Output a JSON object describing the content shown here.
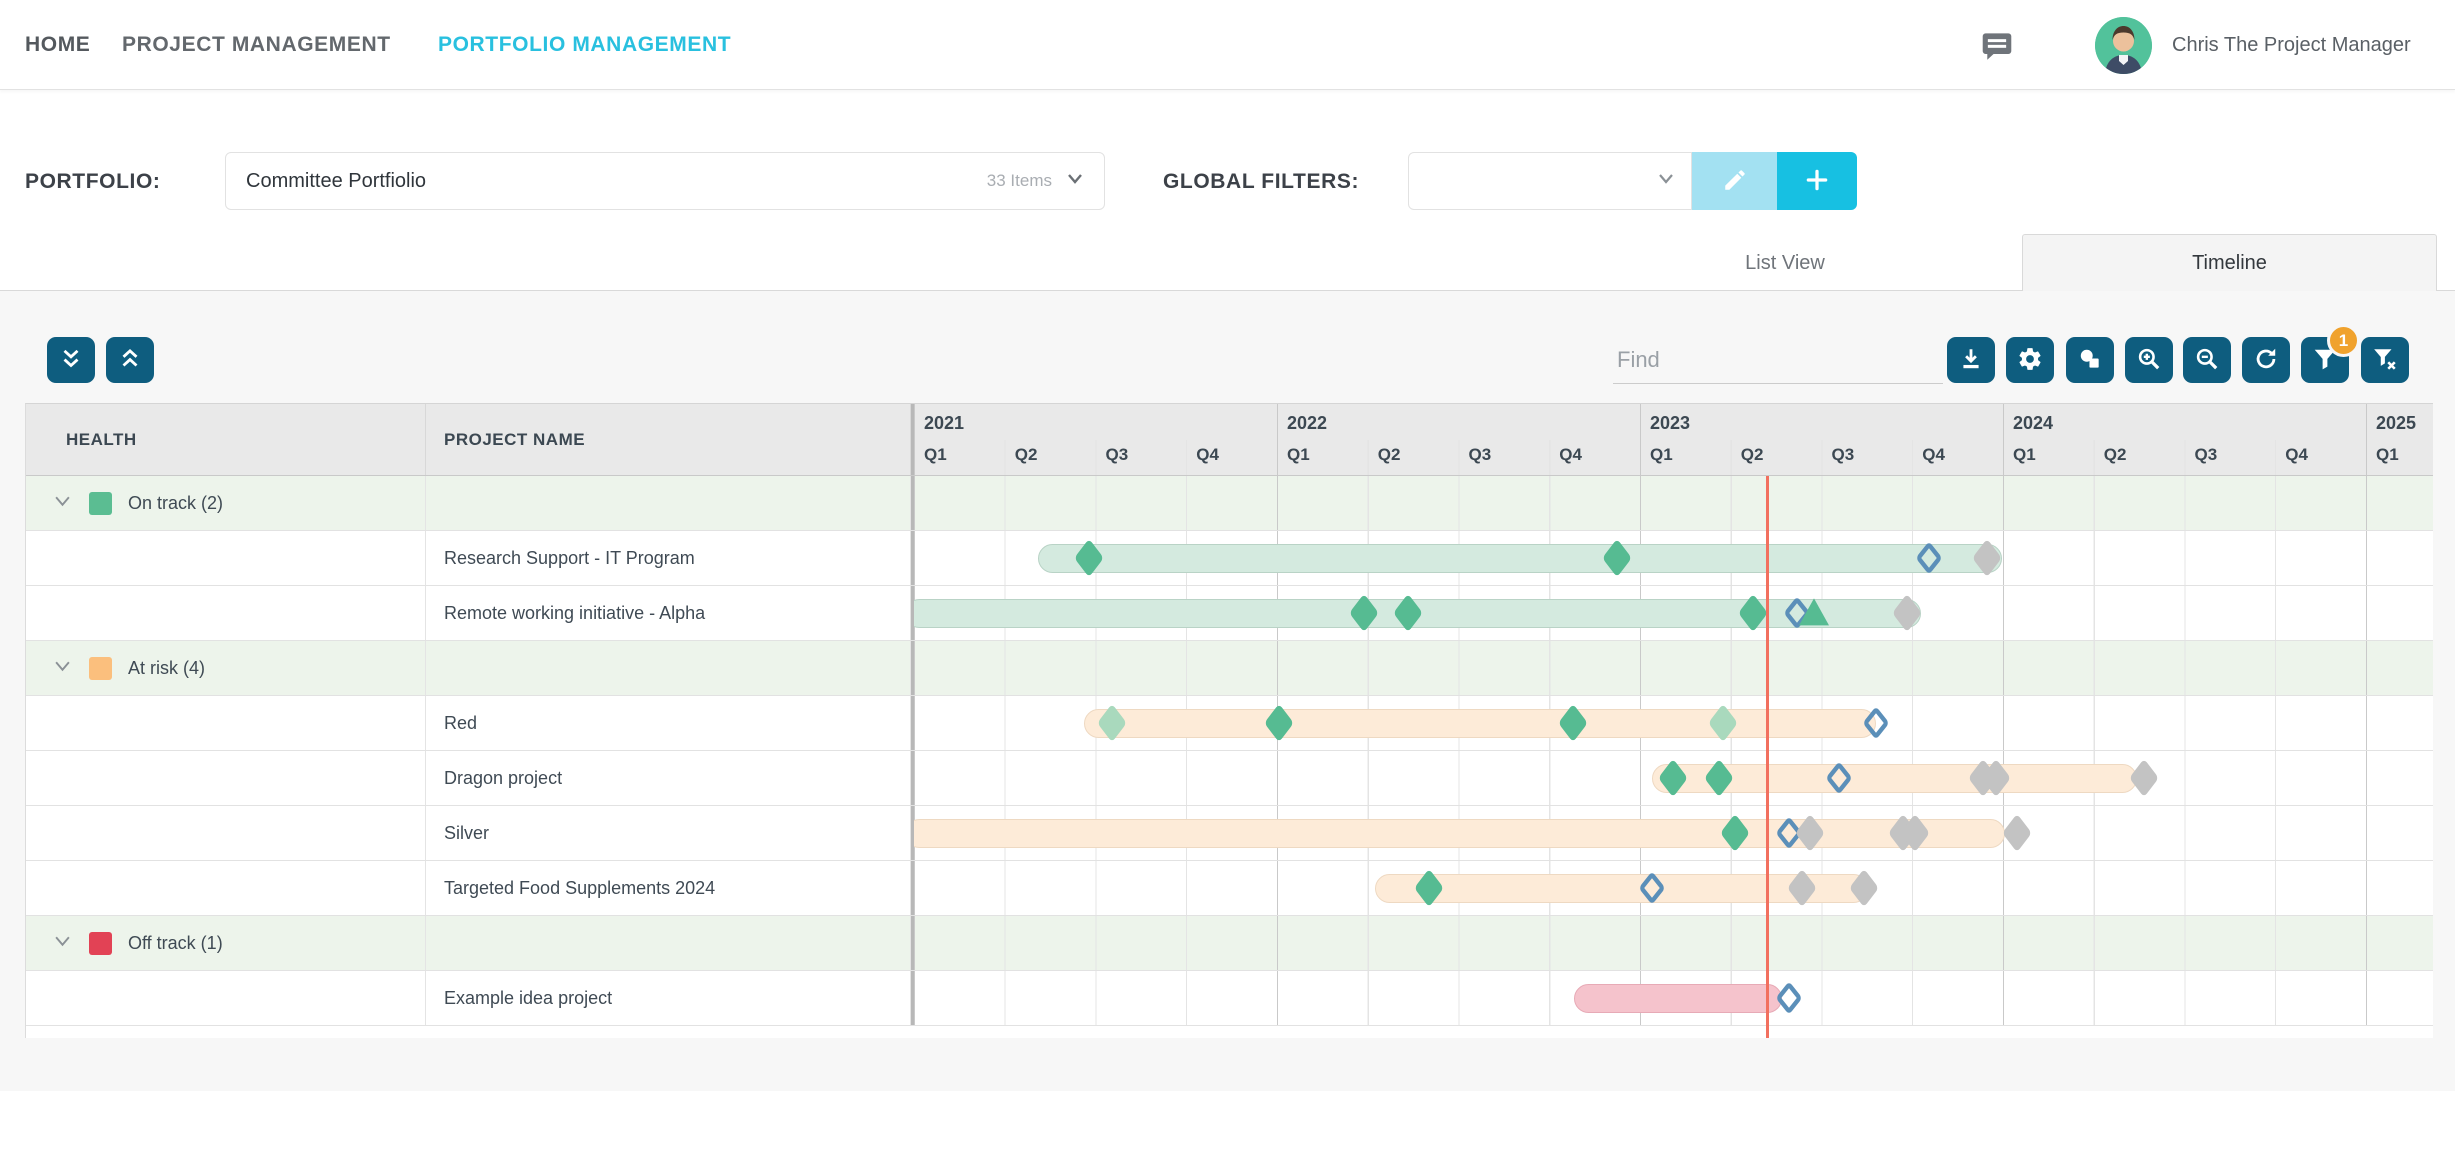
{
  "nav": {
    "home": "HOME",
    "project_management": "PROJECT MANAGEMENT",
    "portfolio_management": "PORTFOLIO MANAGEMENT",
    "user_name": "Chris The Project Manager"
  },
  "controls": {
    "portfolio_label": "PORTFOLIO:",
    "portfolio_value": "Committee Portfiolio",
    "portfolio_items": "33 Items",
    "global_filters_label": "GLOBAL FILTERS:",
    "global_filters_value": ""
  },
  "tabs": {
    "list_view": "List View",
    "timeline": "Timeline",
    "active": "Timeline"
  },
  "toolbar": {
    "find_placeholder": "Find",
    "filter_badge": "1",
    "buttons": [
      "expand-all",
      "collapse-all",
      "export-download",
      "settings",
      "shapes",
      "zoom-in",
      "zoom-out",
      "refresh",
      "filter",
      "clear-filter"
    ]
  },
  "table_headers": {
    "health": "HEALTH",
    "project_name": "PROJECT NAME"
  },
  "colors": {
    "accent_cyan": "#29c0df",
    "button_teal": "#0e5d7f",
    "badge_orange": "#f0a22d",
    "today_line": "#f2705f",
    "group_row_bg": "#edf4eb",
    "milestone_green": "#56bb92",
    "milestone_green_light": "#a9d9bd",
    "milestone_gray": "#c3c3c3",
    "milestone_blue_outline": "#5b8fb9"
  },
  "chart_data": {
    "type": "gantt-timeline",
    "axis": {
      "years": [
        2021,
        2022,
        2023,
        2024,
        2025
      ],
      "quarter_label_prefix": "Q",
      "visible_quarters": 17,
      "today_quarter_offset": 9.43
    },
    "bar_colors": {
      "on_track": {
        "fill": "#d4eadf",
        "border": "#b9d3c6"
      },
      "at_risk": {
        "fill": "#fdebd8",
        "border": "#eed9c2"
      },
      "off_track": {
        "fill": "#f5c3cc",
        "border": "#e7aab6"
      }
    },
    "groups": [
      {
        "label": "On track (2)",
        "health": "on_track",
        "swatch": "#5bbd92",
        "projects": [
          {
            "name": "Research Support - IT Program",
            "bar": [
              1.37,
              11.99
            ],
            "milestones": [
              {
                "q": 1.93,
                "type": "green"
              },
              {
                "q": 7.75,
                "type": "green"
              },
              {
                "q": 11.19,
                "type": "blue_outline"
              },
              {
                "q": 11.82,
                "type": "gray"
              }
            ]
          },
          {
            "name": "Remote working initiative - Alpha",
            "bar": [
              -0.1,
              11.1
            ],
            "milestones": [
              {
                "q": 4.96,
                "type": "green"
              },
              {
                "q": 5.44,
                "type": "green"
              },
              {
                "q": 9.25,
                "type": "green"
              },
              {
                "q": 9.73,
                "type": "blue_outline"
              },
              {
                "q": 9.92,
                "type": "triangle_green"
              },
              {
                "q": 10.94,
                "type": "gray"
              }
            ]
          }
        ]
      },
      {
        "label": "At risk (4)",
        "health": "at_risk",
        "swatch": "#fbbf7d",
        "projects": [
          {
            "name": "Red",
            "bar": [
              1.87,
              10.6
            ],
            "milestones": [
              {
                "q": 2.18,
                "type": "green_light"
              },
              {
                "q": 4.02,
                "type": "green"
              },
              {
                "q": 7.26,
                "type": "green"
              },
              {
                "q": 8.92,
                "type": "green_light"
              },
              {
                "q": 10.6,
                "type": "blue_outline"
              }
            ]
          },
          {
            "name": "Dragon project",
            "bar": [
              8.13,
              13.48
            ],
            "milestones": [
              {
                "q": 8.36,
                "type": "green"
              },
              {
                "q": 8.87,
                "type": "green"
              },
              {
                "q": 10.19,
                "type": "blue_outline"
              },
              {
                "q": 11.78,
                "type": "gray"
              },
              {
                "q": 11.92,
                "type": "gray"
              },
              {
                "q": 13.55,
                "type": "gray"
              }
            ]
          },
          {
            "name": "Silver",
            "bar": [
              -0.1,
              12.02
            ],
            "milestones": [
              {
                "q": 9.05,
                "type": "green"
              },
              {
                "q": 9.64,
                "type": "blue_outline"
              },
              {
                "q": 9.87,
                "type": "gray"
              },
              {
                "q": 10.9,
                "type": "gray"
              },
              {
                "q": 11.03,
                "type": "gray"
              },
              {
                "q": 12.15,
                "type": "gray"
              }
            ]
          },
          {
            "name": "Targeted Food Supplements 2024",
            "bar": [
              5.08,
              10.51
            ],
            "milestones": [
              {
                "q": 5.67,
                "type": "green"
              },
              {
                "q": 8.13,
                "type": "blue_outline"
              },
              {
                "q": 9.78,
                "type": "gray"
              },
              {
                "q": 10.47,
                "type": "gray"
              }
            ]
          }
        ]
      },
      {
        "label": "Off track (1)",
        "health": "off_track",
        "swatch": "#e24255",
        "projects": [
          {
            "name": "Example idea project",
            "bar": [
              7.27,
              9.56
            ],
            "milestones": [
              {
                "q": 9.64,
                "type": "blue_outline"
              }
            ]
          }
        ]
      }
    ]
  }
}
